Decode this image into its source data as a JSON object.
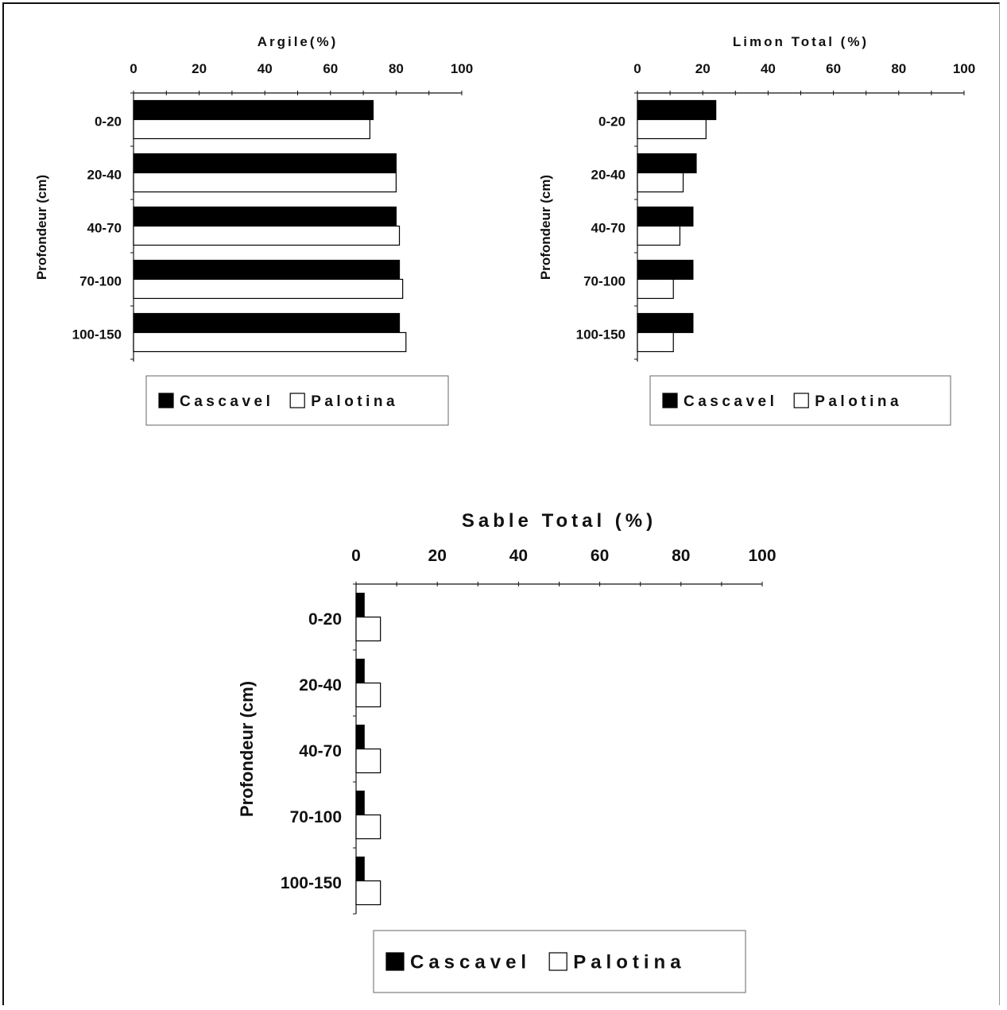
{
  "chart_data": [
    {
      "type": "bar",
      "orientation": "horizontal",
      "title": "Argile(%)",
      "ylabel": "Profondeur (cm)",
      "xlim": [
        0,
        100
      ],
      "xticks": [
        "0",
        "20",
        "40",
        "60",
        "80",
        "100"
      ],
      "categories": [
        "0-20",
        "20-40",
        "40-70",
        "70-100",
        "100-150"
      ],
      "series": [
        {
          "name": "Cascavel",
          "values": [
            73,
            80,
            80,
            81,
            81
          ]
        },
        {
          "name": "Palotina",
          "values": [
            72,
            80,
            81,
            82,
            83
          ]
        }
      ],
      "legend_position": "bottom",
      "grid": false
    },
    {
      "type": "bar",
      "orientation": "horizontal",
      "title": "Limon Total (%)",
      "ylabel": "Profondeur (cm)",
      "xlim": [
        0,
        100
      ],
      "xticks": [
        "0",
        "20",
        "40",
        "60",
        "80",
        "100"
      ],
      "categories": [
        "0-20",
        "20-40",
        "40-70",
        "70-100",
        "100-150"
      ],
      "series": [
        {
          "name": "Cascavel",
          "values": [
            24,
            18,
            17,
            17,
            17
          ]
        },
        {
          "name": "Palotina",
          "values": [
            21,
            14,
            13,
            11,
            11
          ]
        }
      ],
      "legend_position": "bottom",
      "grid": false
    },
    {
      "type": "bar",
      "orientation": "horizontal",
      "title": "Sable Total (%)",
      "ylabel": "Profondeur (cm)",
      "xlim": [
        0,
        100
      ],
      "xticks": [
        "0",
        "20",
        "40",
        "60",
        "80",
        "100"
      ],
      "categories": [
        "0-20",
        "20-40",
        "40-70",
        "70-100",
        "100-150"
      ],
      "series": [
        {
          "name": "Cascavel",
          "values": [
            2,
            2,
            2,
            2,
            2
          ]
        },
        {
          "name": "Palotina",
          "values": [
            6,
            6,
            6,
            6,
            6
          ]
        }
      ],
      "legend_position": "bottom",
      "grid": false
    }
  ],
  "colors": {
    "Cascavel": "#000000",
    "Palotina": "#ffffff",
    "axis": "#111111"
  }
}
